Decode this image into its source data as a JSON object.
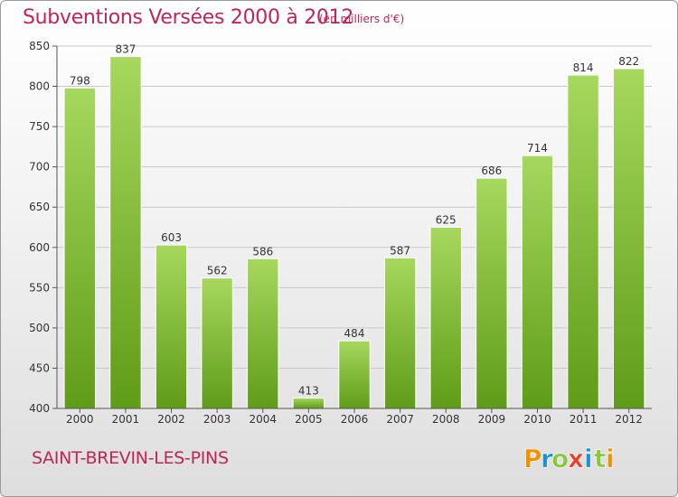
{
  "header": {
    "title": "Subventions Versées 2000 à 2012",
    "subtitle": "(en milliers d'€)"
  },
  "footer": {
    "city": "SAINT-BREVIN-LES-PINS",
    "logo": {
      "letters": [
        "P",
        "r",
        "o",
        "x",
        "i",
        "t",
        "i"
      ],
      "colors": [
        "#f29100",
        "#1e8fd6",
        "#8cc63f",
        "#e8432a",
        "#1e8fd6",
        "#8cc63f",
        "#f29100"
      ]
    }
  },
  "chart_data": {
    "type": "bar",
    "categories": [
      "2000",
      "2001",
      "2002",
      "2003",
      "2004",
      "2005",
      "2006",
      "2007",
      "2008",
      "2009",
      "2010",
      "2011",
      "2012"
    ],
    "values": [
      798,
      837,
      603,
      562,
      586,
      413,
      484,
      587,
      625,
      686,
      714,
      814,
      822
    ],
    "title": "Subventions Versées 2000 à 2012",
    "subtitle": "(en milliers d'€)",
    "xlabel": "",
    "ylabel": "",
    "ylim": [
      400,
      850
    ],
    "yticks": [
      400,
      450,
      500,
      550,
      600,
      650,
      700,
      750,
      800,
      850
    ],
    "grid": true,
    "legend": "none",
    "colors": {
      "bar": "#7ebd2e",
      "bar_light": "#a3d65a",
      "bar_dark": "#5e9a17"
    }
  }
}
